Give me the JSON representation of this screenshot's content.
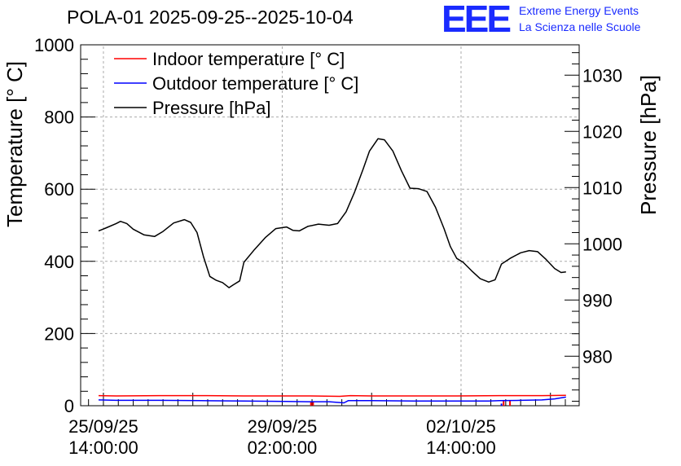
{
  "title": "POLA-01 2025-09-25--2025-10-04",
  "logo": {
    "mark": "EEE",
    "line1": "Extreme Energy Events",
    "line2": "La Scienza nelle Scuole"
  },
  "colors": {
    "indoor": "#ff0000",
    "outdoor": "#0000ff",
    "pressure": "#000000",
    "grid": "#aaaaaa"
  },
  "chart_data": {
    "type": "line",
    "time_unit": "hours since 25/09/25 00:00:00",
    "xlim": [
      3.3,
      237.5
    ],
    "ylim_left": [
      0,
      1000
    ],
    "ylim_right": [
      971.2,
      1035.4
    ],
    "ylabel_left": "Temperature [° C]",
    "ylabel_right": "Pressure [hPa]",
    "x_ticks": [
      {
        "t": 14,
        "line1": "25/09/25",
        "line2": "14:00:00"
      },
      {
        "t": 98,
        "line1": "29/09/25",
        "line2": "02:00:00"
      },
      {
        "t": 182,
        "line1": "02/10/25",
        "line2": "14:00:00"
      }
    ],
    "y_ticks_left": [
      "0",
      "200",
      "400",
      "600",
      "800",
      "1000"
    ],
    "y_ticks_right": [
      "980",
      "990",
      "1000",
      "1010",
      "1020",
      "1030"
    ],
    "legend": {
      "position": "top-left",
      "entries": [
        "Indoor temperature [° C]",
        "Outdoor temperature [° C]",
        "Pressure [hPa]"
      ]
    },
    "series": [
      {
        "name": "Indoor temperature [° C]",
        "axis": "left",
        "points": [
          [
            11.7,
            28
          ],
          [
            20,
            27
          ],
          [
            40,
            28
          ],
          [
            60,
            28
          ],
          [
            80,
            27
          ],
          [
            100,
            27
          ],
          [
            110,
            27
          ],
          [
            125,
            26
          ],
          [
            130,
            28
          ],
          [
            140,
            27
          ],
          [
            160,
            27
          ],
          [
            180,
            27
          ],
          [
            200,
            28
          ],
          [
            220,
            28
          ],
          [
            231.3,
            29
          ]
        ],
        "spikes": [
          [
            111.5,
            12
          ],
          [
            112.5,
            12
          ],
          [
            202,
            14
          ],
          [
            205,
            14
          ]
        ]
      },
      {
        "name": "Outdoor temperature [° C]",
        "axis": "left",
        "points": [
          [
            11.7,
            16
          ],
          [
            20,
            15
          ],
          [
            40,
            15
          ],
          [
            60,
            14
          ],
          [
            80,
            13
          ],
          [
            100,
            12
          ],
          [
            110,
            11
          ],
          [
            120,
            11
          ],
          [
            127,
            8
          ],
          [
            129,
            14
          ],
          [
            140,
            14
          ],
          [
            160,
            13
          ],
          [
            180,
            13
          ],
          [
            195,
            13
          ],
          [
            200,
            14
          ],
          [
            210,
            15
          ],
          [
            220,
            16
          ],
          [
            226,
            19
          ],
          [
            231.3,
            24
          ]
        ],
        "spikes": [
          [
            201,
            6
          ]
        ]
      },
      {
        "name": "Pressure [hPa]",
        "axis": "right",
        "points": [
          [
            11.7,
            1002.3
          ],
          [
            15,
            1002.8
          ],
          [
            20,
            1003.6
          ],
          [
            22,
            1004.0
          ],
          [
            25,
            1003.6
          ],
          [
            28,
            1002.6
          ],
          [
            33,
            1001.6
          ],
          [
            38,
            1001.3
          ],
          [
            42,
            1002.2
          ],
          [
            47,
            1003.7
          ],
          [
            52,
            1004.3
          ],
          [
            55,
            1003.8
          ],
          [
            58,
            1002.0
          ],
          [
            61,
            997.7
          ],
          [
            64,
            994.2
          ],
          [
            67,
            993.5
          ],
          [
            70,
            993.1
          ],
          [
            73,
            992.2
          ],
          [
            75,
            992.7
          ],
          [
            78,
            993.4
          ],
          [
            80,
            996.7
          ],
          [
            85,
            999.0
          ],
          [
            90,
            1001.1
          ],
          [
            95,
            1002.7
          ],
          [
            100,
            1003.0
          ],
          [
            103,
            1002.4
          ],
          [
            106,
            1002.3
          ],
          [
            110,
            1003.1
          ],
          [
            115,
            1003.5
          ],
          [
            120,
            1003.3
          ],
          [
            124,
            1003.6
          ],
          [
            128,
            1005.7
          ],
          [
            132,
            1009.2
          ],
          [
            136,
            1013.3
          ],
          [
            139,
            1016.5
          ],
          [
            143,
            1018.7
          ],
          [
            146,
            1018.5
          ],
          [
            150,
            1016.5
          ],
          [
            154,
            1013.0
          ],
          [
            158,
            1009.9
          ],
          [
            162,
            1009.8
          ],
          [
            166,
            1009.3
          ],
          [
            170,
            1006.5
          ],
          [
            174,
            1002.7
          ],
          [
            177,
            999.5
          ],
          [
            180,
            997.4
          ],
          [
            183,
            996.7
          ],
          [
            187,
            995.2
          ],
          [
            191,
            993.8
          ],
          [
            195,
            993.2
          ],
          [
            198,
            993.6
          ],
          [
            201,
            996.4
          ],
          [
            205,
            997.4
          ],
          [
            210,
            998.4
          ],
          [
            214,
            998.8
          ],
          [
            218,
            998.6
          ],
          [
            222,
            997.2
          ],
          [
            226,
            995.6
          ],
          [
            229,
            994.9
          ],
          [
            231.3,
            995.0
          ]
        ]
      }
    ]
  }
}
